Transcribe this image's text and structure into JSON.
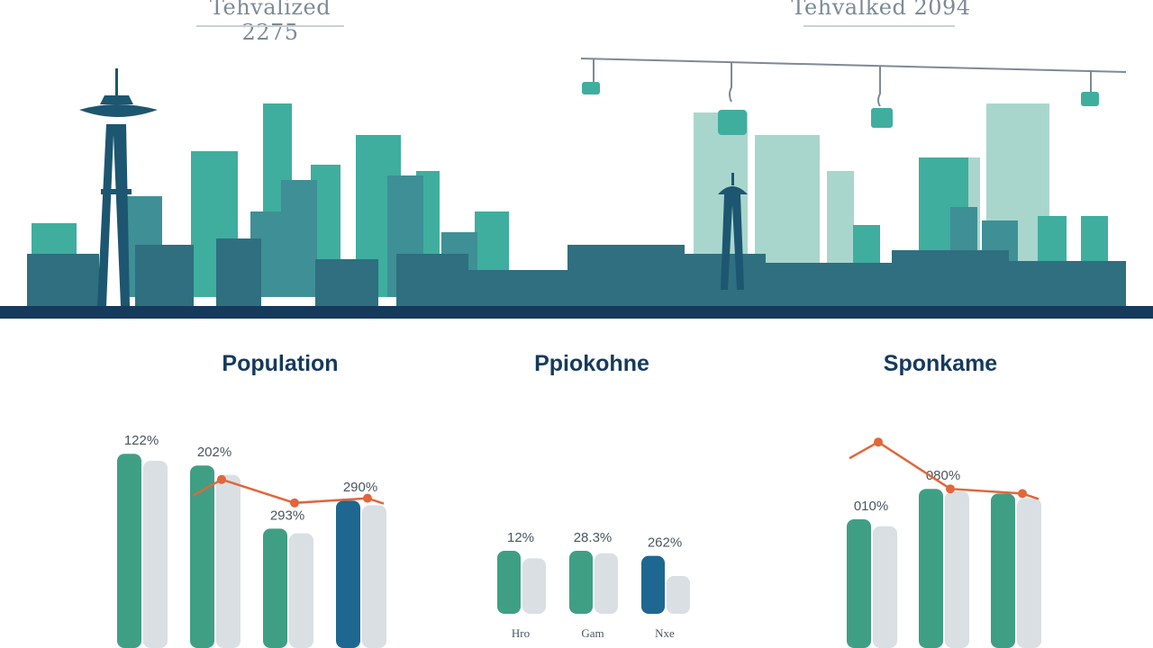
{
  "headers": {
    "left": "Tehvalized 2275",
    "right": "Tehvalked 2094"
  },
  "colors": {
    "teal": "#3f9f85",
    "light": "#d9dfe3",
    "blue": "#1d6791",
    "line": "#e2663a",
    "navy": "#163a5c",
    "skyline_dark": "#2f6f7f",
    "skyline_mid": "#3f8f96",
    "skyline_teal": "#3fae9e",
    "skyline_light": "#a9d6cc"
  },
  "chart_data": [
    {
      "type": "bar",
      "title": "Population",
      "categories": [
        "",
        "",
        "",
        ""
      ],
      "series": [
        {
          "values": [
            83,
            78,
            51,
            63
          ]
        },
        {
          "values": [
            80,
            74,
            49,
            61
          ]
        }
      ],
      "highlight_index": 3,
      "data_labels": [
        "122%",
        "202%",
        "293%",
        "290%"
      ],
      "line_series": [
        null,
        72,
        62,
        64
      ],
      "ylim": [
        0,
        100
      ]
    },
    {
      "type": "bar",
      "title": "Ppiokohne",
      "categories": [
        "Hro",
        "Gam",
        "Nxe"
      ],
      "series": [
        {
          "values": [
            25,
            25,
            23
          ]
        },
        {
          "values": [
            22,
            24,
            15
          ]
        }
      ],
      "highlight_index": 2,
      "data_labels": [
        "12%",
        "28.3%",
        "262%"
      ],
      "ylim": [
        0,
        100
      ]
    },
    {
      "type": "bar",
      "title": "Sponkame",
      "categories": [
        "",
        "",
        ""
      ],
      "series": [
        {
          "values": [
            55,
            68,
            66
          ]
        },
        {
          "values": [
            52,
            67,
            64
          ]
        }
      ],
      "data_labels": [
        "010%",
        "080%",
        ""
      ],
      "line_series": [
        88,
        68,
        66
      ],
      "ylim": [
        0,
        100
      ]
    }
  ]
}
